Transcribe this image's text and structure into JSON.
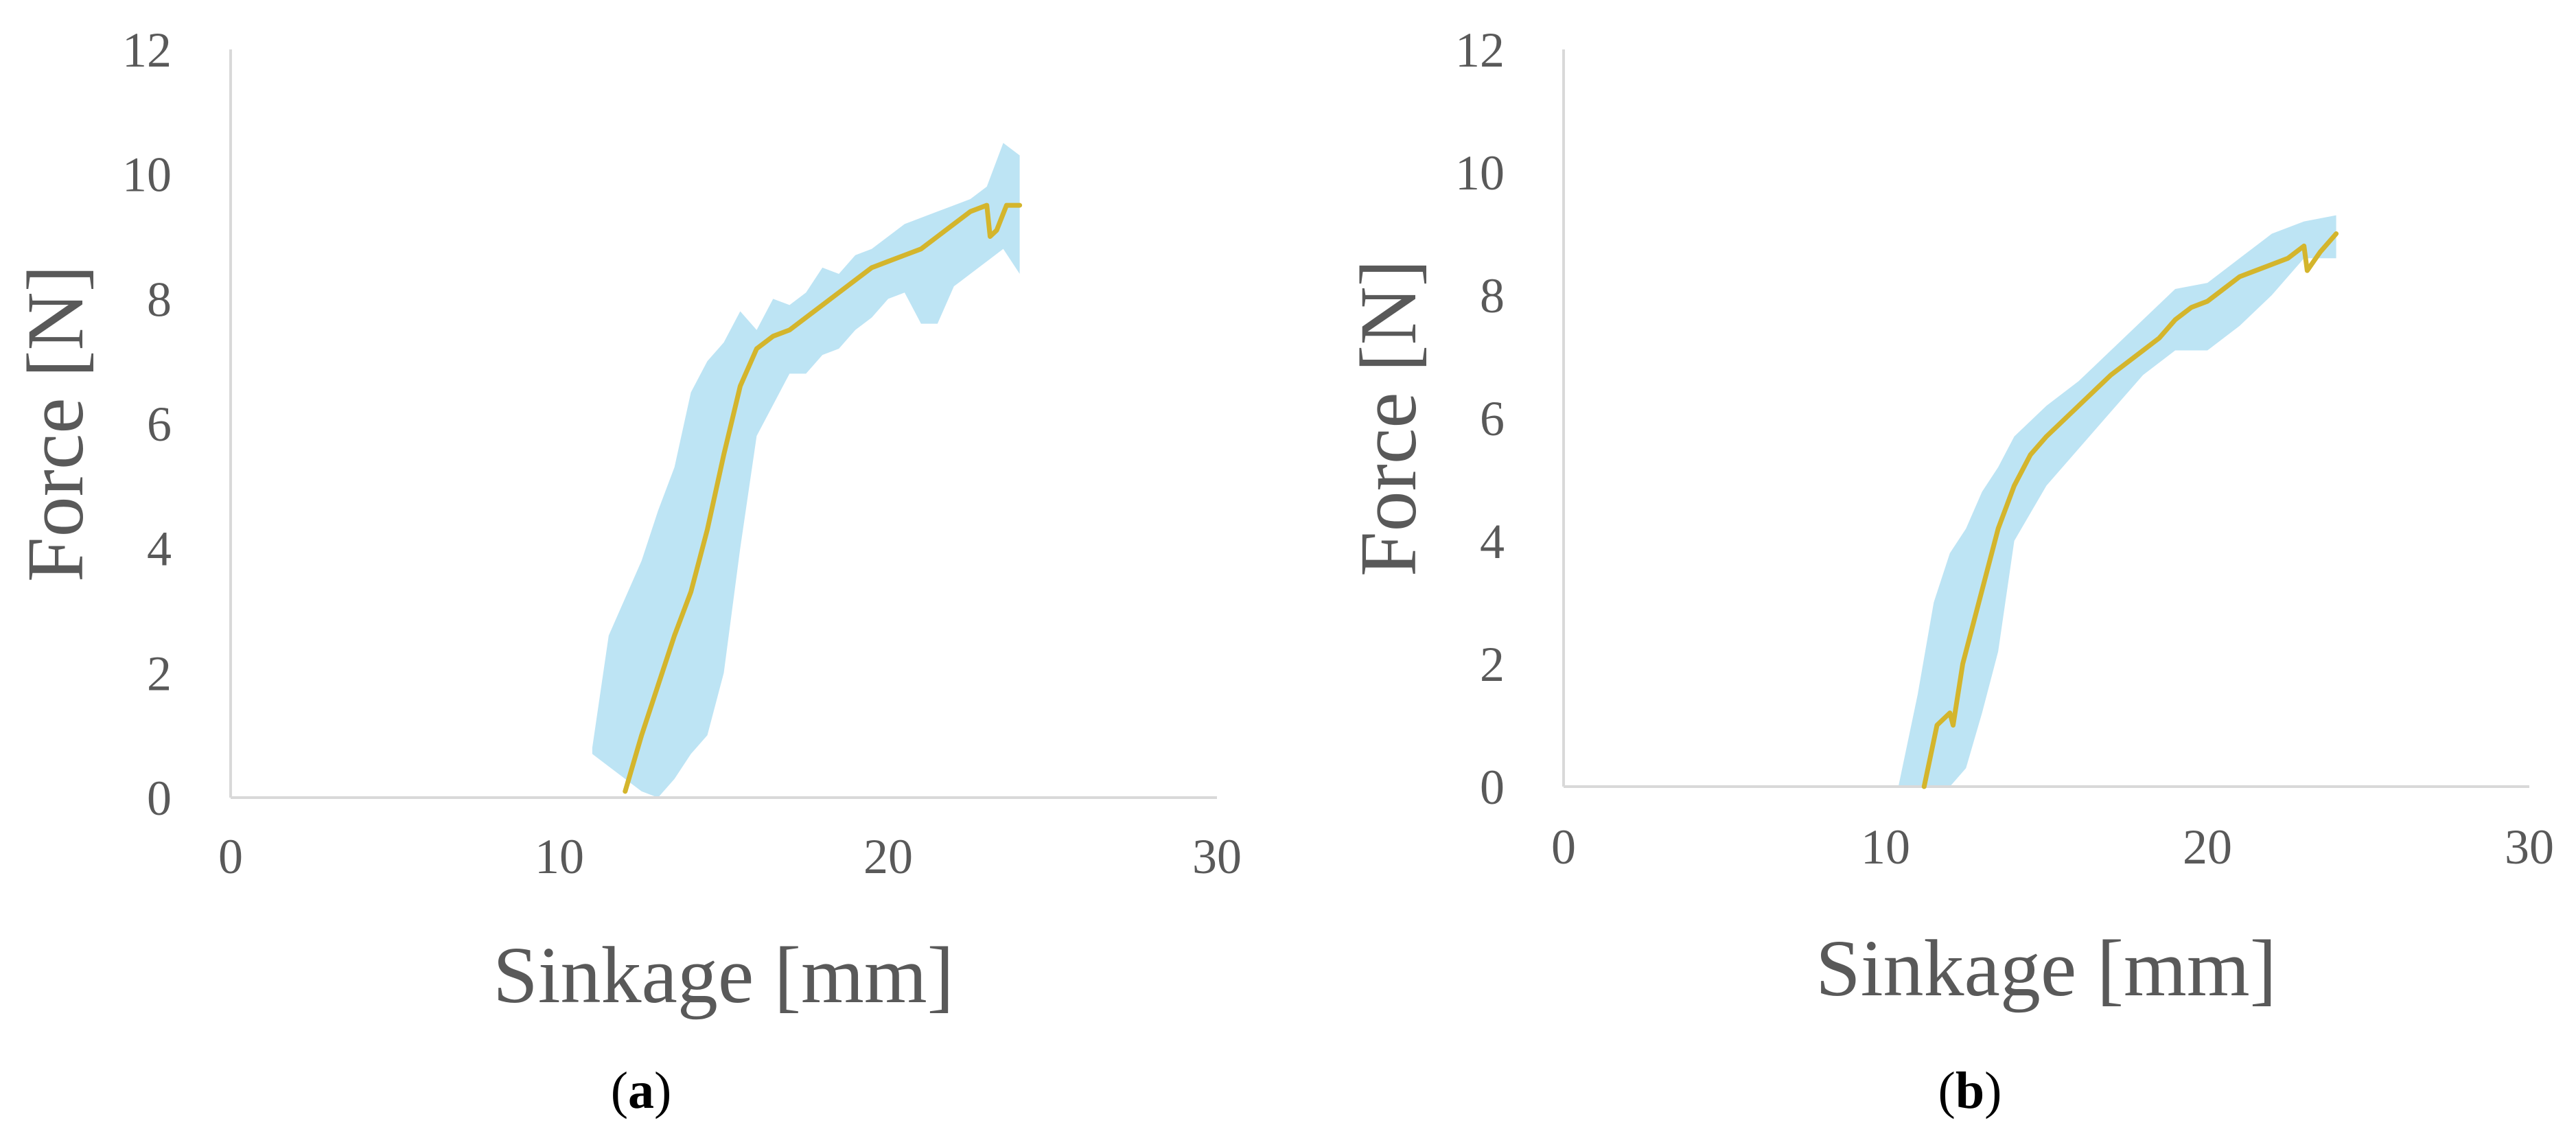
{
  "chart_data": [
    {
      "type": "line",
      "panel_label": "a",
      "xlabel": "Sinkage [mm]",
      "ylabel": "Force [N]",
      "xlim": [
        0,
        30
      ],
      "ylim": [
        0,
        12
      ],
      "x_ticks": [
        0,
        10,
        20,
        30
      ],
      "y_ticks": [
        0,
        2,
        4,
        6,
        8,
        10,
        12
      ],
      "grid": false,
      "colors": {
        "mean": "#d4b52c",
        "band": "#bde4f4",
        "axis": "#d9d9d9"
      },
      "series": [
        {
          "role": "mean",
          "x": [
            12.0,
            12.5,
            13.0,
            13.5,
            14.0,
            14.5,
            15.0,
            15.5,
            16.0,
            16.5,
            17.0,
            17.5,
            18.0,
            18.5,
            19.0,
            19.5,
            20.0,
            20.5,
            21.0,
            21.5,
            22.0,
            22.5,
            23.0,
            23.1,
            23.3,
            23.6,
            24.0
          ],
          "y": [
            0.1,
            1.0,
            1.8,
            2.6,
            3.3,
            4.3,
            5.5,
            6.6,
            7.2,
            7.4,
            7.5,
            7.7,
            7.9,
            8.1,
            8.3,
            8.5,
            8.6,
            8.7,
            8.8,
            9.0,
            9.2,
            9.4,
            9.5,
            9.0,
            9.1,
            9.5,
            9.5
          ]
        },
        {
          "role": "band",
          "x": [
            11.0,
            11.5,
            12.0,
            12.5,
            13.0,
            13.5,
            14.0,
            14.5,
            15.0,
            15.5,
            16.0,
            16.5,
            17.0,
            17.5,
            18.0,
            18.5,
            19.0,
            19.5,
            20.0,
            20.5,
            21.0,
            21.5,
            22.0,
            22.5,
            23.0,
            23.5,
            24.0
          ],
          "upper": [
            0.8,
            2.6,
            3.2,
            3.8,
            4.6,
            5.3,
            6.5,
            7.0,
            7.3,
            7.8,
            7.5,
            8.0,
            7.9,
            8.1,
            8.5,
            8.4,
            8.7,
            8.8,
            9.0,
            9.2,
            9.3,
            9.4,
            9.5,
            9.6,
            9.8,
            10.5,
            10.3
          ],
          "lower": [
            0.7,
            0.5,
            0.3,
            0.1,
            0.0,
            0.3,
            0.7,
            1.0,
            2.0,
            4.0,
            5.8,
            6.3,
            6.8,
            6.8,
            7.1,
            7.2,
            7.5,
            7.7,
            8.0,
            8.1,
            7.6,
            7.6,
            8.2,
            8.4,
            8.6,
            8.8,
            8.4
          ]
        }
      ]
    },
    {
      "type": "line",
      "panel_label": "b",
      "xlabel": "Sinkage [mm]",
      "ylabel": "Force [N]",
      "xlim": [
        0,
        30
      ],
      "ylim": [
        0,
        12
      ],
      "x_ticks": [
        0,
        10,
        20,
        30
      ],
      "y_ticks": [
        0,
        2,
        4,
        6,
        8,
        10,
        12
      ],
      "grid": false,
      "colors": {
        "mean": "#d4b52c",
        "band": "#bde4f4",
        "axis": "#d9d9d9"
      },
      "series": [
        {
          "role": "mean",
          "x": [
            11.2,
            11.6,
            12.0,
            12.1,
            12.4,
            13.0,
            13.5,
            14.0,
            14.5,
            15.0,
            16.0,
            17.0,
            18.0,
            18.5,
            19.0,
            19.5,
            20.0,
            20.5,
            21.0,
            21.5,
            22.0,
            22.5,
            23.0,
            23.1,
            23.5,
            24.0
          ],
          "y": [
            0.0,
            1.0,
            1.2,
            1.0,
            2.0,
            3.2,
            4.2,
            4.9,
            5.4,
            5.7,
            6.2,
            6.7,
            7.1,
            7.3,
            7.6,
            7.8,
            7.9,
            8.1,
            8.3,
            8.4,
            8.5,
            8.6,
            8.8,
            8.4,
            8.7,
            9.0
          ]
        },
        {
          "role": "band",
          "x": [
            10.4,
            11.0,
            11.5,
            12.0,
            12.5,
            13.0,
            13.5,
            14.0,
            15.0,
            16.0,
            17.0,
            18.0,
            19.0,
            20.0,
            21.0,
            22.0,
            23.0,
            24.0
          ],
          "upper": [
            0.0,
            1.5,
            3.0,
            3.8,
            4.2,
            4.8,
            5.2,
            5.7,
            6.2,
            6.6,
            7.1,
            7.6,
            8.1,
            8.2,
            8.6,
            9.0,
            9.2,
            9.3
          ],
          "lower": [
            0.0,
            0.0,
            0.0,
            0.0,
            0.3,
            1.2,
            2.2,
            4.0,
            4.9,
            5.5,
            6.1,
            6.7,
            7.1,
            7.1,
            7.5,
            8.0,
            8.6,
            8.6
          ]
        }
      ]
    }
  ]
}
